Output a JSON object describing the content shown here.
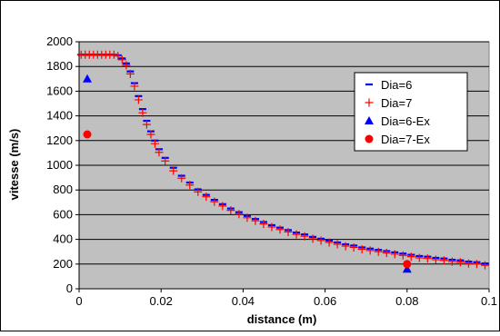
{
  "chart_data": {
    "type": "scatter",
    "xlabel": "distance (m)",
    "ylabel": "vitesse (m/s)",
    "xlim": [
      0,
      0.1
    ],
    "ylim": [
      0,
      2000
    ],
    "x_ticks": [
      0,
      0.02,
      0.04,
      0.06,
      0.08,
      0.1
    ],
    "x_tick_labels": [
      "0",
      "0.02",
      "0.04",
      "0.06",
      "0.08",
      "0.1"
    ],
    "y_ticks": [
      0,
      200,
      400,
      600,
      800,
      1000,
      1200,
      1400,
      1600,
      1800,
      2000
    ],
    "y_tick_labels": [
      "0",
      "200",
      "400",
      "600",
      "800",
      "1000",
      "1200",
      "1400",
      "1600",
      "1800",
      "2000"
    ],
    "grid": "horizontal",
    "legend_position": "top-right",
    "background": "#c0c0c0",
    "series": [
      {
        "name": "Dia=6",
        "marker": "dash",
        "color": "#0000ff",
        "x": [
          0.0005,
          0.0015,
          0.0025,
          0.0035,
          0.0045,
          0.0055,
          0.0065,
          0.0075,
          0.0085,
          0.0095,
          0.0105,
          0.0115,
          0.0125,
          0.0135,
          0.0145,
          0.0155,
          0.0165,
          0.0175,
          0.0185,
          0.0195,
          0.021,
          0.023,
          0.025,
          0.027,
          0.029,
          0.031,
          0.033,
          0.035,
          0.037,
          0.039,
          0.041,
          0.043,
          0.045,
          0.047,
          0.049,
          0.051,
          0.053,
          0.055,
          0.057,
          0.059,
          0.061,
          0.063,
          0.065,
          0.067,
          0.069,
          0.071,
          0.073,
          0.075,
          0.077,
          0.079,
          0.081,
          0.083,
          0.085,
          0.087,
          0.089,
          0.091,
          0.093,
          0.095,
          0.097,
          0.099
        ],
        "y": [
          1895,
          1895,
          1895,
          1895,
          1895,
          1895,
          1895,
          1895,
          1895,
          1890,
          1865,
          1825,
          1760,
          1665,
          1560,
          1455,
          1360,
          1275,
          1200,
          1130,
          1060,
          980,
          915,
          860,
          805,
          760,
          720,
          685,
          650,
          620,
          590,
          565,
          540,
          515,
          495,
          475,
          455,
          440,
          420,
          405,
          390,
          375,
          360,
          350,
          335,
          325,
          315,
          305,
          295,
          285,
          275,
          265,
          260,
          250,
          245,
          235,
          230,
          220,
          215,
          205
        ]
      },
      {
        "name": "Dia=7",
        "marker": "plus",
        "color": "#ff0000",
        "x": [
          0.0005,
          0.0015,
          0.0025,
          0.0035,
          0.0045,
          0.0055,
          0.0065,
          0.0075,
          0.0085,
          0.0095,
          0.0105,
          0.0115,
          0.0125,
          0.0135,
          0.0145,
          0.0155,
          0.0165,
          0.0175,
          0.0185,
          0.0195,
          0.021,
          0.023,
          0.025,
          0.027,
          0.029,
          0.031,
          0.033,
          0.035,
          0.037,
          0.039,
          0.041,
          0.043,
          0.045,
          0.047,
          0.049,
          0.051,
          0.053,
          0.055,
          0.057,
          0.059,
          0.061,
          0.063,
          0.065,
          0.067,
          0.069,
          0.071,
          0.073,
          0.075,
          0.077,
          0.079,
          0.081,
          0.083,
          0.085,
          0.087,
          0.089,
          0.091,
          0.093,
          0.095,
          0.097,
          0.099
        ],
        "y": [
          1895,
          1895,
          1895,
          1895,
          1895,
          1895,
          1895,
          1895,
          1895,
          1885,
          1855,
          1810,
          1740,
          1640,
          1530,
          1425,
          1330,
          1250,
          1175,
          1105,
          1035,
          955,
          895,
          840,
          785,
          745,
          705,
          670,
          635,
          605,
          575,
          550,
          525,
          500,
          480,
          460,
          440,
          425,
          405,
          390,
          375,
          360,
          345,
          335,
          320,
          310,
          300,
          290,
          280,
          270,
          260,
          250,
          245,
          235,
          230,
          220,
          215,
          205,
          200,
          190
        ]
      },
      {
        "name": "Dia=6-Ex",
        "marker": "triangle",
        "color": "#0000ff",
        "x": [
          0.002,
          0.08
        ],
        "y": [
          1700,
          160
        ]
      },
      {
        "name": "Dia=7-Ex",
        "marker": "circle",
        "color": "#ff0000",
        "x": [
          0.002,
          0.08
        ],
        "y": [
          1250,
          200
        ]
      }
    ]
  }
}
